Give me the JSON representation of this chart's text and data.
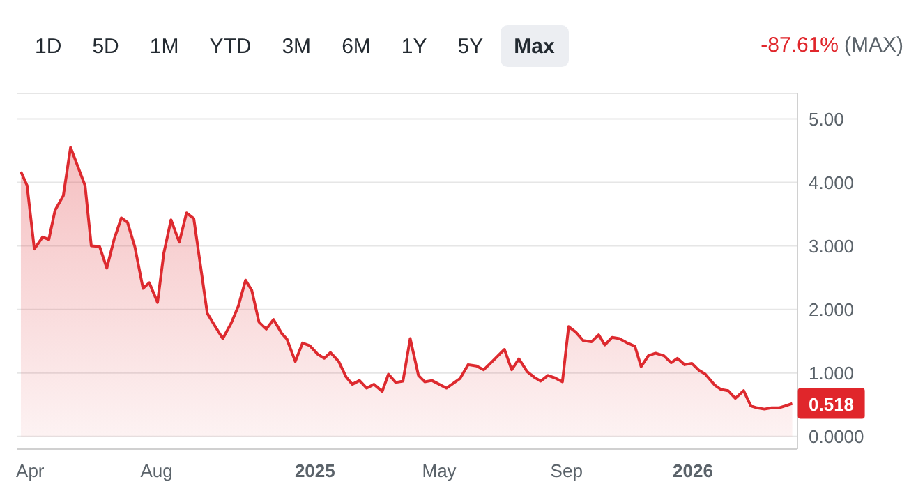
{
  "chart_data": {
    "type": "area",
    "x": [
      "2024-03-23",
      "2024-03-29",
      "2024-04-05",
      "2024-04-13",
      "2024-04-19",
      "2024-04-25",
      "2024-05-03",
      "2024-05-10",
      "2024-05-24",
      "2024-05-30",
      "2024-06-07",
      "2024-06-14",
      "2024-06-21",
      "2024-06-28",
      "2024-07-04",
      "2024-07-11",
      "2024-07-19",
      "2024-07-25",
      "2024-08-02",
      "2024-08-08",
      "2024-08-15",
      "2024-08-23",
      "2024-08-30",
      "2024-09-06",
      "2024-09-19",
      "2024-09-26",
      "2024-10-04",
      "2024-10-12",
      "2024-10-19",
      "2024-10-26",
      "2024-11-01",
      "2024-11-08",
      "2024-11-15",
      "2024-11-22",
      "2024-11-30",
      "2024-12-05",
      "2024-12-13",
      "2024-12-20",
      "2024-12-27",
      "2025-01-04",
      "2025-01-10",
      "2025-01-16",
      "2025-01-24",
      "2025-01-31",
      "2025-02-06",
      "2025-02-13",
      "2025-02-20",
      "2025-02-27",
      "2025-03-07",
      "2025-03-13",
      "2025-03-20",
      "2025-03-27",
      "2025-04-03",
      "2025-04-11",
      "2025-04-17",
      "2025-04-24",
      "2025-05-08",
      "2025-05-21",
      "2025-05-29",
      "2025-06-06",
      "2025-06-13",
      "2025-06-20",
      "2025-07-03",
      "2025-07-10",
      "2025-07-17",
      "2025-07-25",
      "2025-08-01",
      "2025-08-07",
      "2025-08-14",
      "2025-08-21",
      "2025-08-28",
      "2025-09-03",
      "2025-09-10",
      "2025-09-17",
      "2025-09-25",
      "2025-10-02",
      "2025-10-08",
      "2025-10-15",
      "2025-10-22",
      "2025-10-30",
      "2025-11-06",
      "2025-11-12",
      "2025-11-19",
      "2025-11-26",
      "2025-12-04",
      "2025-12-11",
      "2025-12-17",
      "2025-12-24",
      "2025-12-31",
      "2026-01-07",
      "2026-01-13",
      "2026-01-22",
      "2026-01-28",
      "2026-02-04",
      "2026-02-11",
      "2026-02-19",
      "2026-02-26",
      "2026-03-04",
      "2026-03-11",
      "2026-03-18",
      "2026-03-25",
      "2026-03-31",
      "2026-04-07"
    ],
    "series": [
      {
        "color": "#dd2a2f",
        "values": [
          4.17,
          3.95,
          2.95,
          3.14,
          3.1,
          3.56,
          3.79,
          4.55,
          3.95,
          3.0,
          2.99,
          2.65,
          3.1,
          3.44,
          3.37,
          2.99,
          2.33,
          2.42,
          2.11,
          2.88,
          3.41,
          3.06,
          3.52,
          3.43,
          1.94,
          1.75,
          1.54,
          1.78,
          2.05,
          2.46,
          2.3,
          1.8,
          1.69,
          1.84,
          1.62,
          1.53,
          1.18,
          1.47,
          1.43,
          1.29,
          1.23,
          1.32,
          1.18,
          0.94,
          0.82,
          0.88,
          0.76,
          0.82,
          0.71,
          0.98,
          0.85,
          0.87,
          1.54,
          0.96,
          0.86,
          0.88,
          0.76,
          0.91,
          1.13,
          1.11,
          1.05,
          1.16,
          1.37,
          1.05,
          1.22,
          1.02,
          0.93,
          0.87,
          0.96,
          0.92,
          0.86,
          1.73,
          1.64,
          1.51,
          1.49,
          1.6,
          1.44,
          1.56,
          1.54,
          1.47,
          1.42,
          1.1,
          1.27,
          1.31,
          1.27,
          1.16,
          1.23,
          1.13,
          1.15,
          1.04,
          0.98,
          0.81,
          0.74,
          0.72,
          0.6,
          0.72,
          0.48,
          0.45,
          0.43,
          0.45,
          0.45,
          0.48,
          0.518
        ]
      }
    ],
    "xlim": [
      "2024-03-19",
      "2026-04-12"
    ],
    "xticks": [
      {
        "value": "2024-04-01",
        "label": "Apr"
      },
      {
        "value": "2024-08-01",
        "label": "Aug"
      },
      {
        "value": "2025-01-01",
        "label": "2025"
      },
      {
        "value": "2025-05-01",
        "label": "May"
      },
      {
        "value": "2025-09-01",
        "label": "Sep"
      },
      {
        "value": "2026-01-01",
        "label": "2026"
      }
    ],
    "ylim": [
      -0.2,
      5.4
    ],
    "yticks": [
      {
        "value": 0,
        "label": "0.0000"
      },
      {
        "value": 1,
        "label": "1.000"
      },
      {
        "value": 2,
        "label": "2.000"
      },
      {
        "value": 3,
        "label": "3.000"
      },
      {
        "value": 4,
        "label": "4.000"
      },
      {
        "value": 5,
        "label": "5.00"
      }
    ],
    "grid": "y",
    "marker": "none",
    "line_style": "solid",
    "annotations": [
      "1D",
      "5D",
      "1M",
      "YTD",
      "3M",
      "6M",
      "1Y",
      "5Y",
      "Max",
      "-87.61%",
      "(MAX)",
      {
        "text": "0.518",
        "x": "2026-04-07",
        "y": 0.518
      }
    ]
  }
}
